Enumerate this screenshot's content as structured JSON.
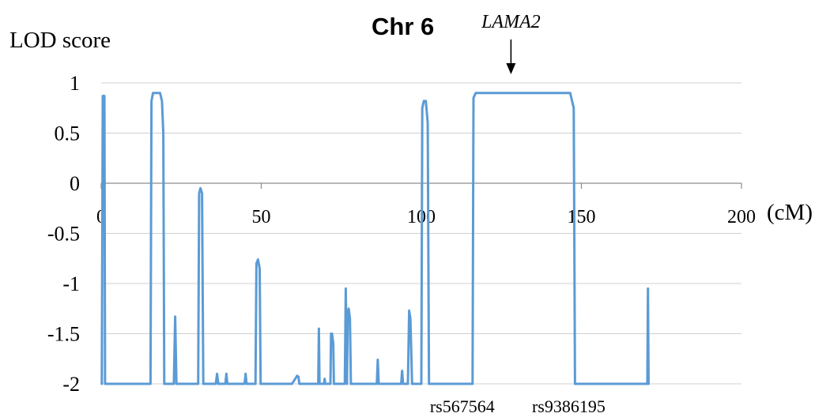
{
  "chart_data": {
    "type": "line",
    "title": "Chr 6",
    "ylabel": "LOD score",
    "xlabel": "(cM)",
    "xlim": [
      0,
      200
    ],
    "ylim": [
      -2,
      1
    ],
    "xticks": [
      "0",
      "50",
      "100",
      "150",
      "200"
    ],
    "yticks": [
      "1",
      "0.5",
      "0",
      "-0.5",
      "-1",
      "-1.5",
      "-2"
    ],
    "grid": "horizontal",
    "line_color": "#5B9BD5",
    "annotations": {
      "gene": "LAMA2",
      "gene_position_cM": 128,
      "marker_left": "rs567564",
      "marker_left_cM": 116,
      "marker_right": "rs9386195",
      "marker_right_cM": 148
    },
    "series": [
      {
        "x": [
          0.2,
          0.5,
          1.0,
          1.2,
          15.4,
          15.7,
          16.2,
          16.8,
          18.4,
          19.0,
          19.4,
          19.7,
          22.7,
          23.1,
          23.5,
          30.3,
          30.6,
          31.0,
          31.5,
          31.9,
          35.8,
          36.2,
          36.6,
          38.8,
          39.1,
          39.4,
          44.8,
          45.1,
          45.4,
          48.2,
          48.5,
          49.0,
          49.5,
          49.8,
          59.6,
          61.2,
          61.6,
          61.9,
          67.8,
          68.0,
          68.2,
          69.6,
          69.8,
          70.0,
          71.6,
          71.8,
          72.1,
          72.5,
          72.7,
          76.1,
          76.4,
          76.8,
          77.0,
          77.3,
          77.7,
          78.0,
          78.4,
          86.1,
          86.4,
          86.7,
          93.7,
          94.0,
          94.3,
          95.8,
          96.2,
          96.6,
          97.1,
          100.0,
          100.3,
          100.8,
          101.4,
          102.0,
          102.4,
          116.0,
          116.3,
          117.0,
          120,
          128,
          140,
          146.5,
          147.6,
          148.0,
          170.6,
          170.8,
          171.0
        ],
        "y": [
          -2.0,
          0.87,
          0.87,
          -2.0,
          -2.0,
          0.82,
          0.9,
          0.9,
          0.9,
          0.82,
          0.5,
          -2.0,
          -2.0,
          -1.33,
          -2.0,
          -2.0,
          -0.1,
          -0.05,
          -0.1,
          -2.0,
          -2.0,
          -1.9,
          -2.0,
          -2.0,
          -1.9,
          -2.0,
          -2.0,
          -1.9,
          -2.0,
          -2.0,
          -0.8,
          -0.76,
          -0.85,
          -2.0,
          -2.0,
          -1.92,
          -1.93,
          -2.0,
          -2.0,
          -1.45,
          -2.0,
          -2.0,
          -1.95,
          -2.0,
          -2.0,
          -1.5,
          -1.5,
          -1.6,
          -2.0,
          -2.0,
          -1.05,
          -2.0,
          -1.3,
          -1.25,
          -1.35,
          -2.0,
          -2.0,
          -2.0,
          -1.76,
          -2.0,
          -2.0,
          -1.87,
          -2.0,
          -2.0,
          -1.27,
          -1.35,
          -2.0,
          -2.0,
          0.75,
          0.82,
          0.82,
          0.6,
          -2.0,
          -2.0,
          0.85,
          0.9,
          0.9,
          0.9,
          0.9,
          0.9,
          0.75,
          -2.0,
          -2.0,
          -1.05,
          -2.0
        ]
      }
    ]
  }
}
